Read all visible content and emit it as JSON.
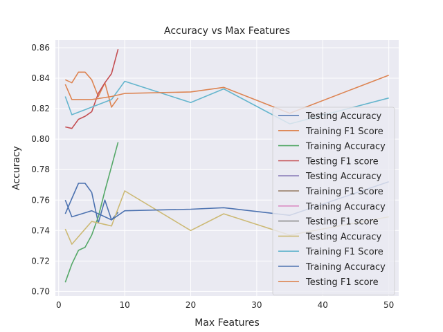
{
  "chart_data": {
    "type": "line",
    "title": "Accuracy vs Max Features",
    "xlabel": "Max Features",
    "ylabel": "Accuracy",
    "xlim": [
      -0.5,
      51.5
    ],
    "ylim": [
      0.697,
      0.865
    ],
    "xticks": [
      0,
      10,
      20,
      30,
      40,
      50
    ],
    "yticks": [
      0.7,
      0.72,
      0.74,
      0.76,
      0.78,
      0.8,
      0.82,
      0.84,
      0.86
    ],
    "grid": true,
    "legend_position": "right",
    "series": [
      {
        "name": "Testing Accuracy",
        "color": "#4c72b0",
        "x": [
          1,
          2,
          3,
          4,
          5,
          6,
          7,
          8,
          9
        ],
        "y": [
          0.751,
          0.761,
          0.771,
          0.771,
          0.765,
          0.745,
          0.76,
          0.747,
          0.752
        ]
      },
      {
        "name": "Training F1 Score",
        "color": "#dd8452",
        "x": [
          1,
          2,
          3,
          4,
          5,
          6,
          7,
          8,
          9
        ],
        "y": [
          0.839,
          0.837,
          0.844,
          0.844,
          0.839,
          0.828,
          0.837,
          0.821,
          0.827
        ]
      },
      {
        "name": "Training Accuracy",
        "color": "#55a868",
        "x": [
          1,
          2,
          3,
          4,
          5,
          6,
          7,
          8,
          9
        ],
        "y": [
          0.706,
          0.718,
          0.727,
          0.729,
          0.737,
          0.749,
          0.766,
          0.782,
          0.798
        ]
      },
      {
        "name": "Testing F1 score",
        "color": "#c44e52",
        "x": [
          1,
          2,
          3,
          4,
          5,
          6,
          7,
          8,
          9
        ],
        "y": [
          0.808,
          0.807,
          0.813,
          0.815,
          0.818,
          0.83,
          0.837,
          0.843,
          0.859
        ]
      },
      {
        "name": "Testing Accuracy",
        "color": "#8172b3",
        "x": [],
        "y": []
      },
      {
        "name": "Training F1 Score",
        "color": "#937860",
        "x": [],
        "y": []
      },
      {
        "name": "Training Accuracy",
        "color": "#da8bc3",
        "x": [],
        "y": []
      },
      {
        "name": "Testing F1 score",
        "color": "#8c8c8c",
        "x": [],
        "y": []
      },
      {
        "name": "Testing Accuracy",
        "color": "#ccb974",
        "x": [
          1,
          2,
          5,
          6,
          8,
          10,
          20,
          25,
          35,
          50
        ],
        "y": [
          0.741,
          0.731,
          0.746,
          0.745,
          0.743,
          0.766,
          0.74,
          0.751,
          0.737,
          0.749
        ]
      },
      {
        "name": "Training F1 Score",
        "color": "#64b5cd",
        "x": [
          1,
          2,
          5,
          8,
          10,
          20,
          25,
          35,
          50
        ],
        "y": [
          0.828,
          0.816,
          0.821,
          0.826,
          0.838,
          0.824,
          0.833,
          0.81,
          0.827
        ]
      },
      {
        "name": "Training Accuracy",
        "color": "#4c72b0",
        "x": [
          1,
          2,
          5,
          8,
          10,
          20,
          25,
          35,
          50
        ],
        "y": [
          0.76,
          0.749,
          0.753,
          0.747,
          0.753,
          0.754,
          0.755,
          0.75,
          0.772
        ]
      },
      {
        "name": "Testing F1 score",
        "color": "#dd8452",
        "x": [
          1,
          2,
          5,
          8,
          10,
          20,
          25,
          35,
          50
        ],
        "y": [
          0.836,
          0.826,
          0.826,
          0.828,
          0.83,
          0.831,
          0.834,
          0.817,
          0.842
        ]
      }
    ]
  }
}
